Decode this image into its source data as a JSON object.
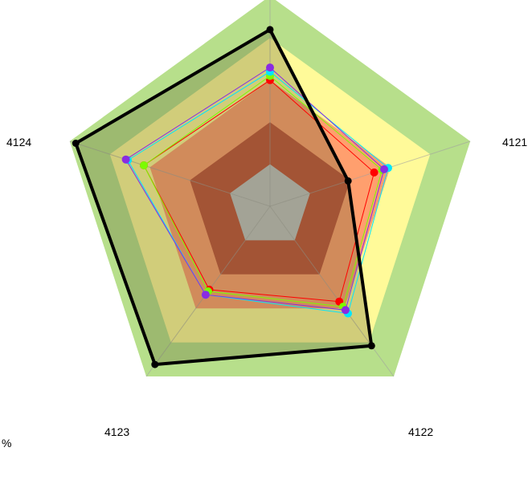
{
  "chart_data": {
    "type": "radar",
    "axes": [
      "",
      "4121",
      "4122",
      "4123",
      "4124"
    ],
    "unit": "%",
    "bands": [
      {
        "max": 1.0,
        "color": "#b7df8b"
      },
      {
        "max": 0.8,
        "color": "#fffa99"
      },
      {
        "max": 0.6,
        "color": "#ff9f6e"
      },
      {
        "max": 0.4,
        "color": "#c0523a"
      },
      {
        "max": 0.2,
        "color": "#c0c0c0"
      }
    ],
    "series": [
      {
        "color": "#000000",
        "line_width": 4,
        "values": [
          0.84,
          0.39,
          0.82,
          0.93,
          0.97
        ],
        "dim_area": true
      },
      {
        "color": "#ff0000",
        "line_width": 1,
        "values": [
          0.6,
          0.52,
          0.56,
          0.49,
          0.63
        ]
      },
      {
        "color": "#7cfc00",
        "line_width": 1,
        "values": [
          0.62,
          0.56,
          0.59,
          0.5,
          0.63
        ]
      },
      {
        "color": "#00e5ff",
        "line_width": 1,
        "values": [
          0.64,
          0.59,
          0.63,
          0.52,
          0.71
        ]
      },
      {
        "color": "#8a2be2",
        "line_width": 1,
        "values": [
          0.66,
          0.57,
          0.61,
          0.52,
          0.72
        ]
      }
    ]
  }
}
